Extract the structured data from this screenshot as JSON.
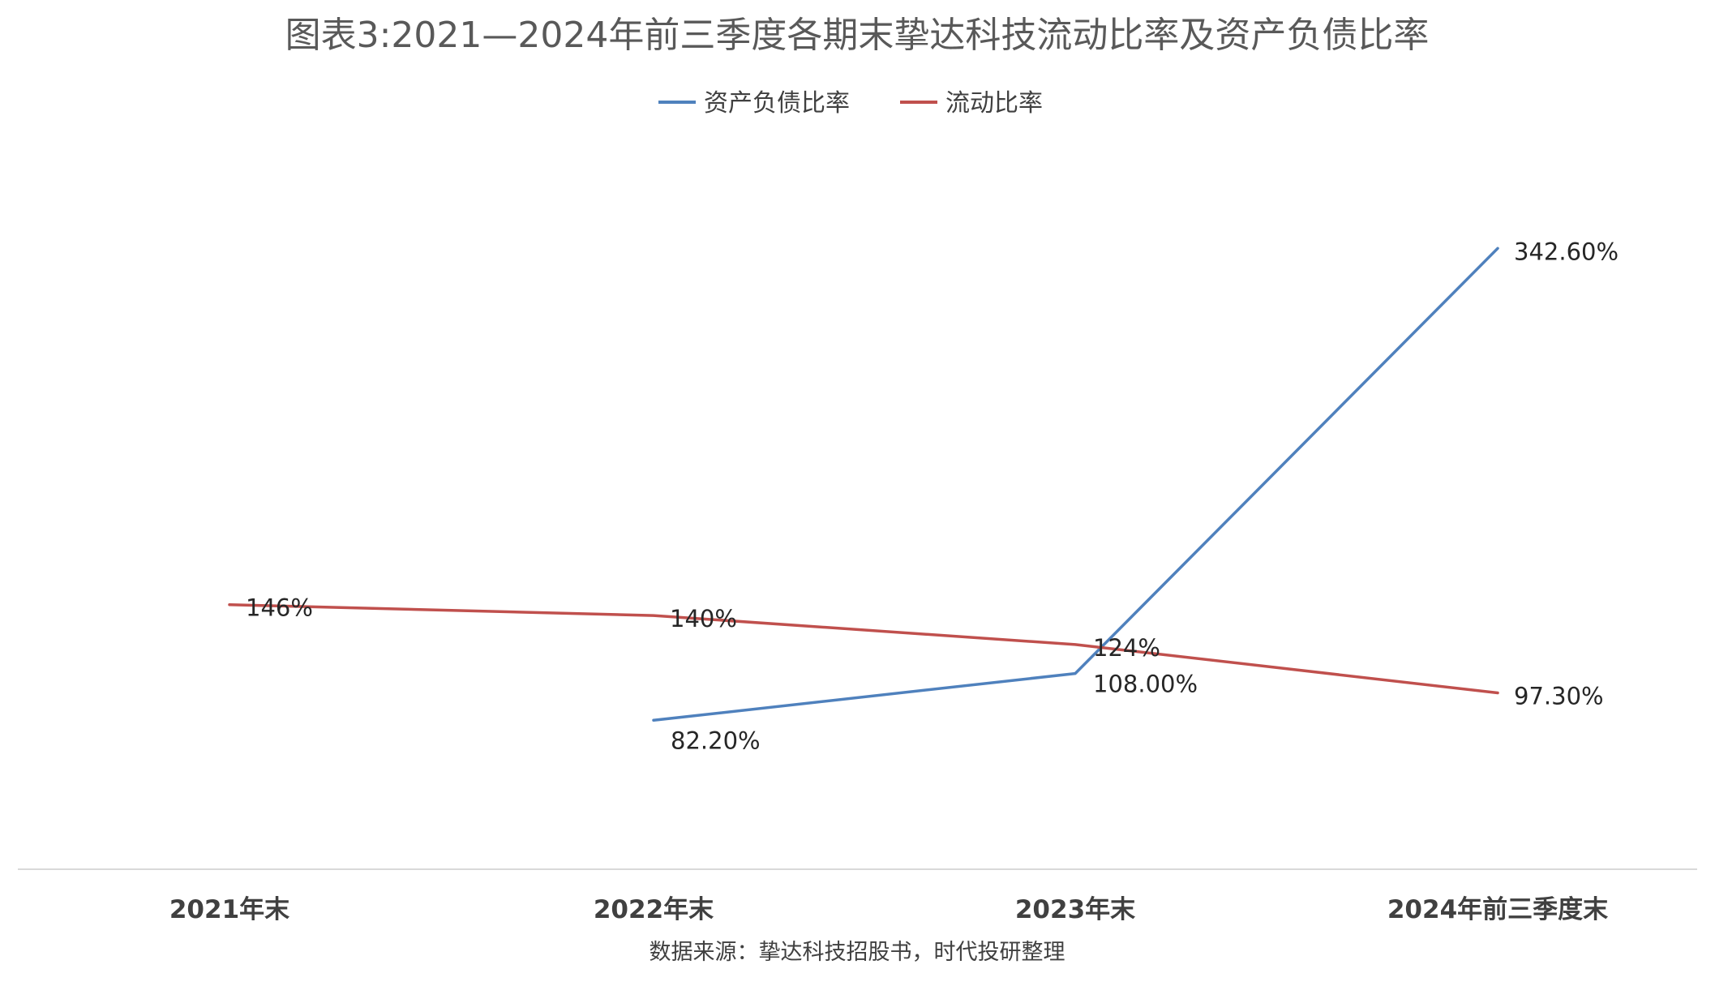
{
  "chart_data": {
    "type": "line",
    "title": "图表3:2021—2024年前三季度各期末挚达科技流动比率及资产负债比率",
    "source": "数据来源：挚达科技招股书，时代投研整理",
    "categories": [
      "2021年末",
      "2022年末",
      "2023年末",
      "2024年前三季度末"
    ],
    "ylim": [
      0,
      400
    ],
    "grid": false,
    "legend_position": "top",
    "series": [
      {
        "name": "资产负债比率",
        "color": "#4F81BD",
        "values": [
          null,
          82.2,
          108.0,
          342.6
        ],
        "labels": [
          null,
          "82.20%",
          "108.00%",
          "342.60%"
        ]
      },
      {
        "name": "流动比率",
        "color": "#C0504D",
        "values": [
          146,
          140,
          124,
          97.3
        ],
        "labels": [
          "146%",
          "140%",
          "124%",
          "97.30%"
        ]
      }
    ]
  }
}
